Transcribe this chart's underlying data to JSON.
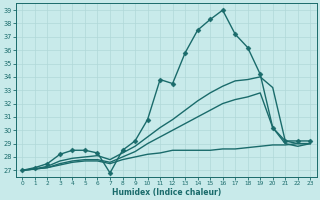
{
  "xlabel": "Humidex (Indice chaleur)",
  "ylabel": "",
  "xlim": [
    -0.5,
    23.5
  ],
  "ylim": [
    26.5,
    39.5
  ],
  "xticks": [
    0,
    1,
    2,
    3,
    4,
    5,
    6,
    7,
    8,
    9,
    10,
    11,
    12,
    13,
    14,
    15,
    16,
    17,
    18,
    19,
    20,
    21,
    22,
    23
  ],
  "yticks": [
    27,
    28,
    29,
    30,
    31,
    32,
    33,
    34,
    35,
    36,
    37,
    38,
    39
  ],
  "bg_color": "#c8eaea",
  "grid_color": "#b0d8d8",
  "line_color": "#1a6b6b",
  "lines": [
    {
      "x": [
        0,
        1,
        2,
        3,
        4,
        5,
        6,
        7,
        8,
        9,
        10,
        11,
        12,
        13,
        14,
        15,
        16,
        17,
        18,
        19,
        20,
        21,
        22,
        23
      ],
      "y": [
        27,
        27.2,
        27.5,
        28.2,
        28.5,
        28.5,
        28.3,
        26.8,
        28.5,
        29.2,
        30.8,
        33.8,
        33.5,
        35.8,
        37.5,
        38.3,
        39.0,
        37.2,
        36.2,
        34.2,
        30.2,
        29.2,
        29.2,
        29.2
      ],
      "marker": "D",
      "markersize": 2.5,
      "linewidth": 1.0
    },
    {
      "x": [
        0,
        1,
        2,
        3,
        4,
        5,
        6,
        7,
        8,
        9,
        10,
        11,
        12,
        13,
        14,
        15,
        16,
        17,
        18,
        19,
        20,
        21,
        22,
        23
      ],
      "y": [
        27,
        27.1,
        27.3,
        27.7,
        27.9,
        28.0,
        28.1,
        27.8,
        28.3,
        28.8,
        29.5,
        30.2,
        30.8,
        31.5,
        32.2,
        32.8,
        33.3,
        33.7,
        33.8,
        34.0,
        33.2,
        29.2,
        29.0,
        29.0
      ],
      "marker": null,
      "markersize": 0,
      "linewidth": 1.0
    },
    {
      "x": [
        0,
        1,
        2,
        3,
        4,
        5,
        6,
        7,
        8,
        9,
        10,
        11,
        12,
        13,
        14,
        15,
        16,
        17,
        18,
        19,
        20,
        21,
        22,
        23
      ],
      "y": [
        27,
        27.1,
        27.2,
        27.5,
        27.7,
        27.8,
        27.8,
        27.6,
        28.0,
        28.4,
        29.0,
        29.5,
        30.0,
        30.5,
        31.0,
        31.5,
        32.0,
        32.3,
        32.5,
        32.8,
        30.2,
        29.0,
        28.8,
        29.0
      ],
      "marker": null,
      "markersize": 0,
      "linewidth": 1.0
    },
    {
      "x": [
        0,
        1,
        2,
        3,
        4,
        5,
        6,
        7,
        8,
        9,
        10,
        11,
        12,
        13,
        14,
        15,
        16,
        17,
        18,
        19,
        20,
        21,
        22,
        23
      ],
      "y": [
        27.0,
        27.1,
        27.2,
        27.4,
        27.6,
        27.7,
        27.7,
        27.5,
        27.8,
        28.0,
        28.2,
        28.3,
        28.5,
        28.5,
        28.5,
        28.5,
        28.6,
        28.6,
        28.7,
        28.8,
        28.9,
        28.9,
        29.0,
        29.0
      ],
      "marker": null,
      "markersize": 0,
      "linewidth": 1.0
    }
  ]
}
